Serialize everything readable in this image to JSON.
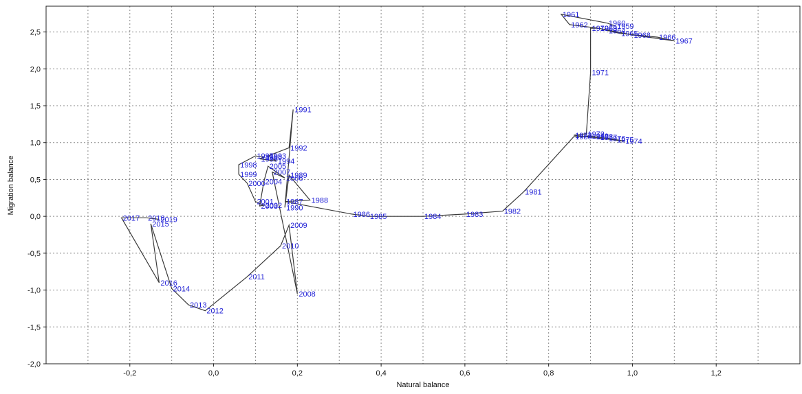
{
  "chart_data": {
    "type": "line",
    "xlabel": "Natural balance",
    "ylabel": "Migration balance",
    "xlim": [
      -0.4,
      1.4
    ],
    "ylim": [
      -2.0,
      2.85
    ],
    "grid": true,
    "x_ticks": [
      -0.2,
      0.0,
      0.2,
      0.4,
      0.6,
      0.8,
      1.0,
      1.2
    ],
    "x_tick_labels": [
      "-0,2",
      "0,0",
      "0,2",
      "0,4",
      "0,6",
      "0,8",
      "1,0",
      "1,2"
    ],
    "y_ticks": [
      -2.0,
      -1.5,
      -1.0,
      -0.5,
      0.0,
      0.5,
      1.0,
      1.5,
      2.0,
      2.5
    ],
    "y_tick_labels": [
      "-2,0",
      "-1,5",
      "-1,0",
      "-0,5",
      "0,0",
      "0,5",
      "1,0",
      "1,5",
      "2,0",
      "2,5"
    ],
    "points": [
      {
        "year": "1959",
        "x": 0.96,
        "y": 2.58
      },
      {
        "year": "1960",
        "x": 0.94,
        "y": 2.62
      },
      {
        "year": "1961",
        "x": 0.83,
        "y": 2.74
      },
      {
        "year": "1962",
        "x": 0.85,
        "y": 2.6
      },
      {
        "year": "1963",
        "x": 0.92,
        "y": 2.55
      },
      {
        "year": "1964",
        "x": 0.94,
        "y": 2.52
      },
      {
        "year": "1965",
        "x": 0.97,
        "y": 2.48
      },
      {
        "year": "1966",
        "x": 1.06,
        "y": 2.43
      },
      {
        "year": "1967",
        "x": 1.1,
        "y": 2.38
      },
      {
        "year": "1968",
        "x": 1.0,
        "y": 2.46
      },
      {
        "year": "1969",
        "x": 0.92,
        "y": 2.55
      },
      {
        "year": "1970",
        "x": 0.9,
        "y": 2.55
      },
      {
        "year": "1971",
        "x": 0.9,
        "y": 1.95
      },
      {
        "year": "1972",
        "x": 0.89,
        "y": 1.12
      },
      {
        "year": "1973",
        "x": 0.86,
        "y": 1.1
      },
      {
        "year": "1974",
        "x": 0.98,
        "y": 1.02
      },
      {
        "year": "1975",
        "x": 0.96,
        "y": 1.04
      },
      {
        "year": "1976",
        "x": 0.94,
        "y": 1.06
      },
      {
        "year": "1977",
        "x": 0.92,
        "y": 1.07
      },
      {
        "year": "1978",
        "x": 0.91,
        "y": 1.08
      },
      {
        "year": "1979",
        "x": 0.9,
        "y": 1.09
      },
      {
        "year": "1980",
        "x": 0.86,
        "y": 1.08
      },
      {
        "year": "1981",
        "x": 0.74,
        "y": 0.33
      },
      {
        "year": "1982",
        "x": 0.69,
        "y": 0.07
      },
      {
        "year": "1983",
        "x": 0.6,
        "y": 0.03
      },
      {
        "year": "1984",
        "x": 0.5,
        "y": 0.0
      },
      {
        "year": "1985",
        "x": 0.37,
        "y": 0.0
      },
      {
        "year": "1986",
        "x": 0.33,
        "y": 0.03
      },
      {
        "year": "1987",
        "x": 0.17,
        "y": 0.2
      },
      {
        "year": "1988",
        "x": 0.23,
        "y": 0.22
      },
      {
        "year": "1989",
        "x": 0.18,
        "y": 0.56
      },
      {
        "year": "1990",
        "x": 0.17,
        "y": 0.12
      },
      {
        "year": "1991",
        "x": 0.19,
        "y": 1.45
      },
      {
        "year": "1992",
        "x": 0.18,
        "y": 0.93
      },
      {
        "year": "1993",
        "x": 0.13,
        "y": 0.82
      },
      {
        "year": "1994",
        "x": 0.15,
        "y": 0.75
      },
      {
        "year": "1995",
        "x": 0.11,
        "y": 0.78
      },
      {
        "year": "1996",
        "x": 0.12,
        "y": 0.8
      },
      {
        "year": "1997",
        "x": 0.1,
        "y": 0.82
      },
      {
        "year": "1998",
        "x": 0.06,
        "y": 0.7
      },
      {
        "year": "1999",
        "x": 0.06,
        "y": 0.57
      },
      {
        "year": "2000",
        "x": 0.08,
        "y": 0.45
      },
      {
        "year": "2001",
        "x": 0.1,
        "y": 0.2
      },
      {
        "year": "2002",
        "x": 0.12,
        "y": 0.15
      },
      {
        "year": "2003",
        "x": 0.11,
        "y": 0.14
      },
      {
        "year": "2004",
        "x": 0.12,
        "y": 0.47
      },
      {
        "year": "2005",
        "x": 0.13,
        "y": 0.68
      },
      {
        "year": "2006",
        "x": 0.17,
        "y": 0.52
      },
      {
        "year": "2007",
        "x": 0.14,
        "y": 0.6
      },
      {
        "year": "2008",
        "x": 0.2,
        "y": -1.05
      },
      {
        "year": "2009",
        "x": 0.18,
        "y": -0.12
      },
      {
        "year": "2010",
        "x": 0.16,
        "y": -0.4
      },
      {
        "year": "2011",
        "x": 0.08,
        "y": -0.82
      },
      {
        "year": "2012",
        "x": -0.02,
        "y": -1.28
      },
      {
        "year": "2013",
        "x": -0.06,
        "y": -1.2
      },
      {
        "year": "2014",
        "x": -0.1,
        "y": -0.98
      },
      {
        "year": "2015",
        "x": -0.15,
        "y": -0.1
      },
      {
        "year": "2016",
        "x": -0.13,
        "y": -0.9
      },
      {
        "year": "2017",
        "x": -0.22,
        "y": -0.02
      },
      {
        "year": "2018",
        "x": -0.16,
        "y": -0.02
      },
      {
        "year": "2019",
        "x": -0.13,
        "y": -0.04
      }
    ]
  }
}
